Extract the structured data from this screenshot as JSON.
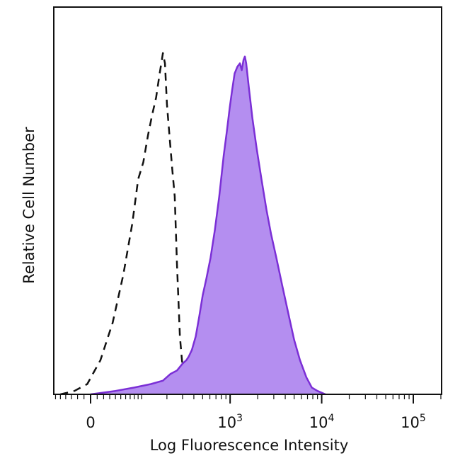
{
  "chart_data": {
    "type": "area",
    "title": "",
    "xlabel": "Log Fluorescence Intensity",
    "ylabel": "Relative Cell Number",
    "x_scale": "biexponential",
    "x_tick_labels": [
      {
        "value": 0,
        "base": "0",
        "exp": ""
      },
      {
        "value": 1000,
        "base": "10",
        "exp": "3"
      },
      {
        "value": 10000,
        "base": "10",
        "exp": "4"
      },
      {
        "value": 100000,
        "base": "10",
        "exp": "5"
      }
    ],
    "ylim": [
      0,
      100
    ],
    "grid": false,
    "series": [
      {
        "style": "dashed-outline",
        "color": "#111111",
        "points": [
          [
            -50,
            0
          ],
          [
            -25,
            1
          ],
          [
            -5,
            3
          ],
          [
            15,
            10
          ],
          [
            35,
            21
          ],
          [
            55,
            35
          ],
          [
            75,
            50
          ],
          [
            90,
            63
          ],
          [
            105,
            68
          ],
          [
            120,
            76
          ],
          [
            135,
            82
          ],
          [
            150,
            87
          ],
          [
            165,
            94
          ],
          [
            175,
            98
          ],
          [
            180,
            100
          ],
          [
            190,
            97
          ],
          [
            200,
            85
          ],
          [
            215,
            75
          ],
          [
            230,
            66
          ],
          [
            245,
            58
          ],
          [
            260,
            38
          ],
          [
            280,
            17
          ],
          [
            295,
            10
          ],
          [
            310,
            6
          ],
          [
            330,
            3
          ],
          [
            360,
            1
          ],
          [
            400,
            0
          ]
        ]
      },
      {
        "style": "filled",
        "color": "#7b2fd6",
        "fill": "#b48ef0",
        "points": [
          [
            0,
            0
          ],
          [
            40,
            1
          ],
          [
            80,
            2
          ],
          [
            130,
            3
          ],
          [
            180,
            4
          ],
          [
            220,
            6
          ],
          [
            260,
            7
          ],
          [
            300,
            9
          ],
          [
            330,
            10
          ],
          [
            350,
            11
          ],
          [
            380,
            13
          ],
          [
            420,
            17
          ],
          [
            460,
            23
          ],
          [
            500,
            29
          ],
          [
            550,
            34
          ],
          [
            610,
            40
          ],
          [
            680,
            48
          ],
          [
            760,
            58
          ],
          [
            850,
            70
          ],
          [
            920,
            77
          ],
          [
            990,
            84
          ],
          [
            1050,
            89
          ],
          [
            1120,
            94
          ],
          [
            1200,
            96
          ],
          [
            1280,
            97
          ],
          [
            1340,
            95
          ],
          [
            1400,
            98
          ],
          [
            1450,
            99
          ],
          [
            1500,
            97
          ],
          [
            1600,
            90
          ],
          [
            1750,
            81
          ],
          [
            1950,
            72
          ],
          [
            2200,
            63
          ],
          [
            2500,
            54
          ],
          [
            2800,
            47
          ],
          [
            3200,
            40
          ],
          [
            3700,
            32
          ],
          [
            4300,
            24
          ],
          [
            5000,
            16
          ],
          [
            5800,
            10
          ],
          [
            6800,
            5
          ],
          [
            7800,
            2
          ],
          [
            9000,
            1
          ],
          [
            11000,
            0
          ]
        ]
      }
    ]
  }
}
